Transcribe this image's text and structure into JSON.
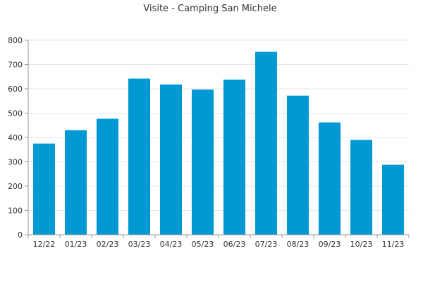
{
  "chart_data": {
    "type": "bar",
    "title": "Visite - Camping San Michele",
    "categories": [
      "12/22",
      "01/23",
      "02/23",
      "03/23",
      "04/23",
      "05/23",
      "06/23",
      "07/23",
      "08/23",
      "09/23",
      "10/23",
      "11/23"
    ],
    "values": [
      375,
      430,
      477,
      642,
      618,
      597,
      638,
      752,
      572,
      462,
      390,
      288
    ],
    "yticks": [
      "0",
      "100",
      "200",
      "300",
      "400",
      "500",
      "600",
      "700",
      "800"
    ],
    "ylim": [
      0,
      800
    ],
    "grid": true,
    "bar_color": "#0099d4",
    "axis_color": "#999999",
    "grid_color": "#e6e6e6"
  }
}
